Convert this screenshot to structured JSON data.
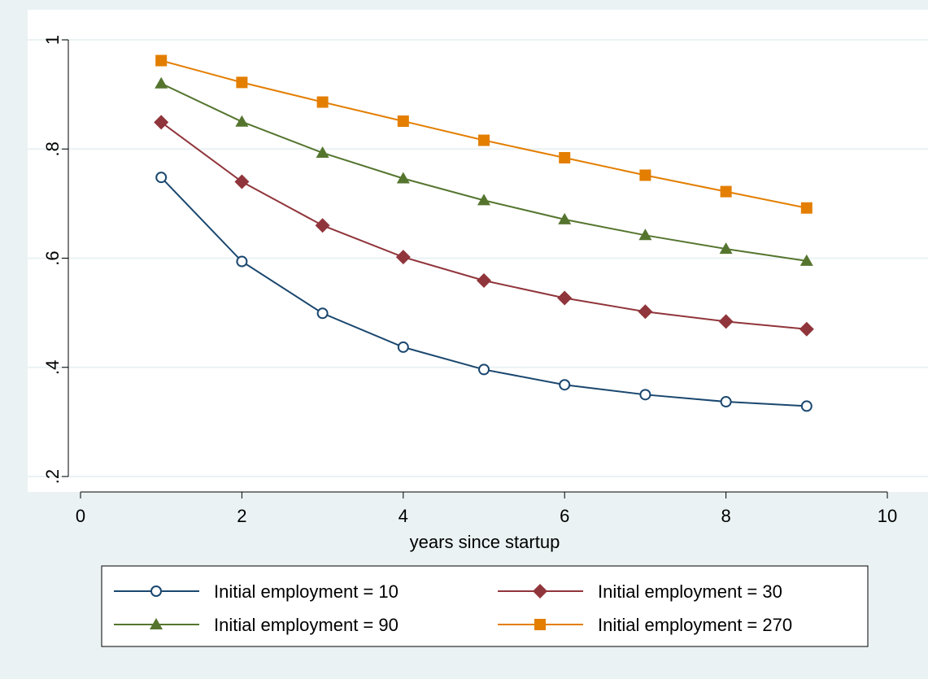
{
  "chart_data": {
    "type": "line",
    "title": "",
    "xlabel": "years since startup",
    "ylabel": "",
    "xlim": [
      0,
      10
    ],
    "ylim": [
      0.2,
      1.0
    ],
    "xticks": [
      0,
      2,
      4,
      6,
      8,
      10
    ],
    "yticks": [
      0.2,
      0.4,
      0.6,
      0.8,
      1.0
    ],
    "xtick_labels": [
      "0",
      "2",
      "4",
      "6",
      "8",
      "10"
    ],
    "ytick_labels": [
      ".2",
      ".4",
      ".6",
      ".8",
      "1"
    ],
    "grid": "horizontal",
    "legend_position": "bottom",
    "x": [
      1,
      2,
      3,
      4,
      5,
      6,
      7,
      8,
      9
    ],
    "series": [
      {
        "name": "Initial employment = 10",
        "color": "#1a476f",
        "marker": "circle-hollow",
        "values": [
          0.748,
          0.594,
          0.499,
          0.437,
          0.396,
          0.368,
          0.35,
          0.337,
          0.329
        ]
      },
      {
        "name": "Initial employment = 30",
        "color": "#90353b",
        "marker": "diamond",
        "values": [
          0.849,
          0.74,
          0.66,
          0.602,
          0.559,
          0.527,
          0.502,
          0.484,
          0.47
        ]
      },
      {
        "name": "Initial employment = 90",
        "color": "#55752f",
        "marker": "triangle",
        "values": [
          0.92,
          0.85,
          0.793,
          0.746,
          0.706,
          0.671,
          0.642,
          0.617,
          0.595
        ]
      },
      {
        "name": "Initial employment = 270",
        "color": "#e37e00",
        "marker": "square",
        "values": [
          0.962,
          0.922,
          0.886,
          0.851,
          0.816,
          0.784,
          0.752,
          0.722,
          0.692
        ]
      }
    ]
  }
}
